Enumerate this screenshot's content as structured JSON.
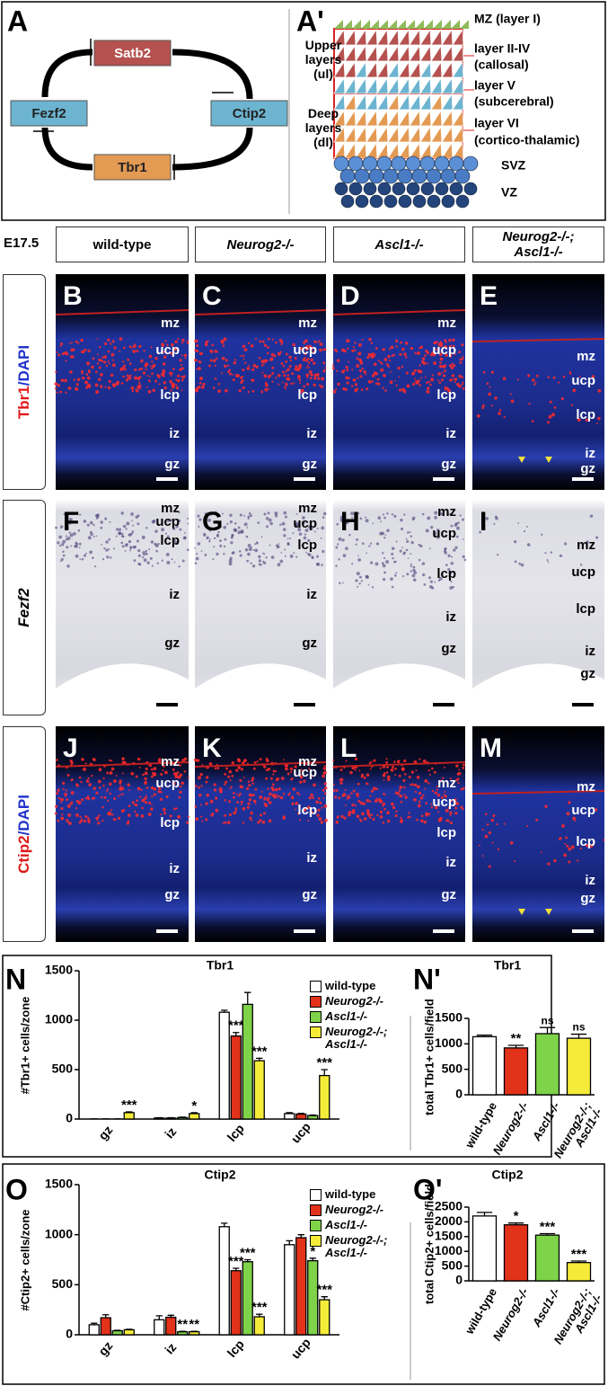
{
  "figure": {
    "panelA": {
      "label": "A",
      "genes": [
        "Satb2",
        "Fezf2",
        "Ctip2",
        "Tbr1"
      ]
    },
    "panelA2": {
      "label": "A'",
      "groups": [
        "Upper layers (ul)",
        "Deep layers (dl)"
      ],
      "layers": [
        "MZ (layer I)",
        "layer II-IV",
        "(callosal)",
        "layer V",
        "(subcerebral)",
        "layer VI",
        "(cortico-thalamic)",
        "SVZ",
        "VZ"
      ]
    },
    "stage": "E17.5",
    "genotypes": [
      "wild-type",
      "Neurog2-/-",
      "Ascl1-/-",
      "Neurog2-/-; Ascl1-/-"
    ],
    "rows": [
      {
        "stain": [
          "Tbr1",
          "/DAPI"
        ]
      },
      {
        "stain": [
          "Fezf2"
        ]
      },
      {
        "stain": [
          "Ctip2",
          "/DAPI"
        ]
      }
    ],
    "panels": [
      {
        "letter": "B",
        "zones": [
          "mz",
          "ucp",
          "lcp",
          "iz",
          "gz"
        ]
      },
      {
        "letter": "C",
        "zones": [
          "mz",
          "ucp",
          "lcp",
          "iz",
          "gz"
        ]
      },
      {
        "letter": "D",
        "zones": [
          "mz",
          "ucp",
          "lcp",
          "iz",
          "gz"
        ]
      },
      {
        "letter": "E",
        "zones": [
          "mz",
          "ucp",
          "lcp",
          "iz",
          "gz"
        ]
      },
      {
        "letter": "F",
        "zones": [
          "mz",
          "ucp",
          "lcp",
          "iz",
          "gz"
        ]
      },
      {
        "letter": "G",
        "zones": [
          "mz",
          "ucp",
          "lcp",
          "iz",
          "gz"
        ]
      },
      {
        "letter": "H",
        "zones": [
          "mz",
          "ucp",
          "lcp",
          "iz",
          "gz"
        ]
      },
      {
        "letter": "I",
        "zones": [
          "mz",
          "ucp",
          "lcp",
          "iz",
          "gz"
        ]
      },
      {
        "letter": "J",
        "zones": [
          "mz",
          "ucp",
          "lcp",
          "iz",
          "gz"
        ]
      },
      {
        "letter": "K",
        "zones": [
          "mz",
          "ucp",
          "lcp",
          "iz",
          "gz"
        ]
      },
      {
        "letter": "L",
        "zones": [
          "mz",
          "ucp",
          "lcp",
          "iz",
          "gz"
        ]
      },
      {
        "letter": "M",
        "zones": [
          "mz",
          "ucp",
          "lcp",
          "iz",
          "gz"
        ]
      }
    ]
  },
  "chart_data": [
    {
      "type": "bar",
      "label": "N",
      "title": "Tbr1",
      "y_label": "#Tbr1+ cells/zone",
      "categories": [
        "gz",
        "iz",
        "lcp",
        "ucp"
      ],
      "ylim": [
        0,
        1500
      ],
      "yticks": [
        0,
        500,
        1000,
        1500
      ],
      "series": [
        {
          "name": "wild-type",
          "color": "#ffffff",
          "values": [
            0,
            10,
            1080,
            55
          ],
          "errors": [
            2,
            3,
            20,
            10
          ],
          "significance": [
            null,
            null,
            null,
            null
          ]
        },
        {
          "name": "Neurog2-/-",
          "color": "#e2321a",
          "values": [
            0,
            10,
            840,
            50
          ],
          "errors": [
            2,
            3,
            35,
            8
          ],
          "significance": [
            null,
            null,
            "***",
            null
          ]
        },
        {
          "name": "Ascl1-/-",
          "color": "#7ed348",
          "values": [
            0,
            15,
            1160,
            35
          ],
          "errors": [
            2,
            4,
            120,
            6
          ],
          "significance": [
            null,
            null,
            null,
            null
          ]
        },
        {
          "name": "Neurog2-/-; Ascl1-/-",
          "color": "#f5ec3a",
          "values": [
            65,
            55,
            590,
            440
          ],
          "errors": [
            8,
            10,
            25,
            60
          ],
          "significance": [
            "***",
            "*",
            "***",
            "***"
          ]
        }
      ]
    },
    {
      "type": "bar",
      "label": "N'",
      "title": "Tbr1",
      "y_label": "total Tbr1+ cells/field",
      "categories": [
        "wild-type",
        "Neurog2-/-",
        "Ascl1-/-",
        "Neurog2-/-; Ascl1-/-"
      ],
      "colors": [
        "#ffffff",
        "#e2321a",
        "#7ed348",
        "#f5ec3a"
      ],
      "values": [
        1140,
        920,
        1200,
        1110
      ],
      "errors": [
        30,
        50,
        120,
        80
      ],
      "significance": [
        null,
        "**",
        "ns",
        "ns"
      ],
      "ylim": [
        0,
        1500
      ],
      "yticks": [
        0,
        500,
        1000,
        1500
      ]
    },
    {
      "type": "bar",
      "label": "O",
      "title": "Ctip2",
      "y_label": "#Ctip2+ cells/zone",
      "categories": [
        "gz",
        "iz",
        "lcp",
        "ucp"
      ],
      "ylim": [
        0,
        1500
      ],
      "yticks": [
        0,
        500,
        1000,
        1500
      ],
      "series": [
        {
          "name": "wild-type",
          "color": "#ffffff",
          "values": [
            100,
            150,
            1080,
            900
          ],
          "errors": [
            15,
            40,
            35,
            40
          ],
          "significance": [
            null,
            null,
            null,
            null
          ]
        },
        {
          "name": "Neurog2-/-",
          "color": "#e2321a",
          "values": [
            170,
            175,
            640,
            970
          ],
          "errors": [
            30,
            20,
            25,
            30
          ],
          "significance": [
            null,
            null,
            "***",
            null
          ]
        },
        {
          "name": "Ascl1-/-",
          "color": "#7ed348",
          "values": [
            40,
            30,
            730,
            740
          ],
          "errors": [
            5,
            5,
            20,
            25
          ],
          "significance": [
            null,
            "**",
            "***",
            "*"
          ]
        },
        {
          "name": "Neurog2-/-; Ascl1-/-",
          "color": "#f5ec3a",
          "values": [
            50,
            30,
            180,
            350
          ],
          "errors": [
            5,
            5,
            25,
            30
          ],
          "significance": [
            null,
            "**",
            "***",
            "***"
          ]
        }
      ]
    },
    {
      "type": "bar",
      "label": "O'",
      "title": "Ctip2",
      "y_label": "total Ctip2+ cells/field",
      "categories": [
        "wild-type",
        "Neurog2-/-",
        "Ascl1-/-",
        "Neurog2-/-; Ascl1-/-"
      ],
      "colors": [
        "#ffffff",
        "#e2321a",
        "#7ed348",
        "#f5ec3a"
      ],
      "values": [
        2200,
        1900,
        1550,
        620
      ],
      "errors": [
        120,
        60,
        50,
        50
      ],
      "significance": [
        null,
        "*",
        "***",
        "***"
      ],
      "ylim": [
        0,
        2500
      ],
      "yticks": [
        0,
        500,
        1000,
        1500,
        2000,
        2500
      ]
    }
  ]
}
